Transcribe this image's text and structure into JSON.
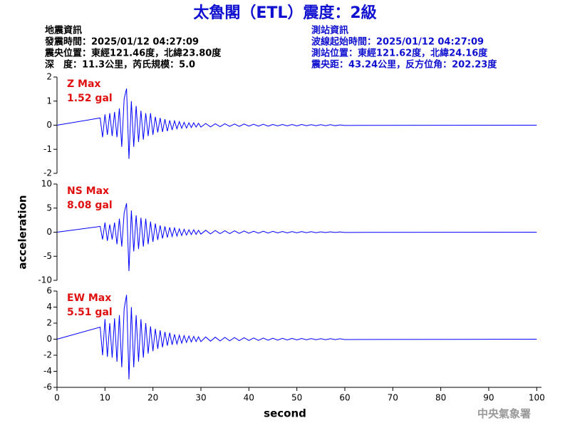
{
  "header": {
    "title": "太魯閣（ETL）震度：2級",
    "left_info": [
      "地震資訊",
      "發震時間：2025/01/12 04:27:09",
      "震央位置：東經121.46度，北緯23.80度",
      "深　度：11.3公里，芮氏規模：5.0"
    ],
    "right_info": [
      "測站資訊",
      "波線起始時間：2025/01/12 04:27:09",
      "測站位置：東經121.62度，北緯24.16度",
      "震央距：43.24公里，反方位角：202.23度"
    ],
    "footer": "中央氣象署"
  },
  "chart_data": [
    {
      "type": "line",
      "annotations": [
        "Z Max",
        "1.52 gal"
      ],
      "color": "#0000ff",
      "xlim": [
        0,
        101
      ],
      "ylim": [
        -2,
        2
      ],
      "yticks": [
        -2,
        -1,
        0,
        1,
        2
      ],
      "x": [
        0,
        9,
        9.5,
        10,
        10.5,
        11,
        11.5,
        12,
        12.5,
        13,
        13.5,
        14,
        14.5,
        15,
        15.5,
        16,
        16.5,
        17,
        17.5,
        18,
        18.5,
        19,
        19.5,
        20,
        20.5,
        21,
        21.5,
        22,
        22.5,
        23,
        23.5,
        24,
        24.5,
        25,
        25.5,
        26,
        26.5,
        27,
        27.5,
        28,
        28.5,
        29,
        29.5,
        30,
        31,
        32,
        33,
        34,
        35,
        36,
        37,
        38,
        39,
        40,
        41,
        42,
        43,
        44,
        45,
        46,
        47,
        48,
        49,
        50,
        51,
        52,
        53,
        54,
        55,
        56,
        57,
        58,
        59,
        60,
        100
      ],
      "values": [
        0,
        0.3,
        -0.5,
        0.45,
        -0.4,
        0.5,
        -0.45,
        0.55,
        -0.5,
        0.7,
        -0.9,
        1.1,
        1.52,
        -1.4,
        1.0,
        -0.9,
        0.8,
        -0.7,
        0.6,
        -0.6,
        0.5,
        -0.45,
        0.5,
        -0.4,
        0.35,
        -0.3,
        0.3,
        -0.28,
        0.25,
        -0.25,
        0.2,
        -0.2,
        0.18,
        -0.15,
        0.15,
        -0.13,
        0.12,
        -0.12,
        0.1,
        -0.1,
        0.1,
        -0.08,
        0.08,
        -0.08,
        0.07,
        -0.07,
        0.06,
        -0.06,
        0.06,
        -0.05,
        0.05,
        -0.05,
        0.05,
        -0.04,
        0.04,
        -0.04,
        0.04,
        -0.04,
        0.03,
        -0.03,
        0.03,
        -0.03,
        0.03,
        -0.03,
        0.03,
        -0.02,
        0.02,
        -0.02,
        0.02,
        -0.02,
        0.02,
        -0.02,
        0.01,
        -0.01,
        0
      ]
    },
    {
      "type": "line",
      "annotations": [
        "NS Max",
        "8.08 gal"
      ],
      "ylabel": "acceleration",
      "color": "#0000ff",
      "xlim": [
        0,
        101
      ],
      "ylim": [
        -10,
        10
      ],
      "yticks": [
        -10,
        -5,
        0,
        5,
        10
      ],
      "x": [
        0,
        9,
        9.5,
        10,
        10.5,
        11,
        11.5,
        12,
        12.5,
        13,
        13.5,
        14,
        14.5,
        15,
        15.5,
        16,
        16.5,
        17,
        17.5,
        18,
        18.5,
        19,
        19.5,
        20,
        20.5,
        21,
        21.5,
        22,
        22.5,
        23,
        23.5,
        24,
        24.5,
        25,
        25.5,
        26,
        26.5,
        27,
        27.5,
        28,
        28.5,
        29,
        29.5,
        30,
        31,
        32,
        33,
        34,
        35,
        36,
        37,
        38,
        39,
        40,
        41,
        42,
        43,
        44,
        45,
        46,
        47,
        48,
        49,
        50,
        51,
        52,
        53,
        54,
        55,
        56,
        57,
        58,
        59,
        60,
        100
      ],
      "values": [
        0,
        1.2,
        -1.5,
        2.0,
        -1.8,
        1.6,
        -1.5,
        2.0,
        -2.5,
        2.8,
        -3.0,
        4.0,
        6.0,
        -8.08,
        4.5,
        -4.0,
        3.5,
        -3.5,
        3.0,
        -3.0,
        2.8,
        -2.5,
        2.2,
        -2.0,
        1.8,
        -1.6,
        1.4,
        -1.3,
        1.2,
        -1.1,
        1.0,
        -0.9,
        0.9,
        -0.8,
        0.7,
        -0.7,
        0.6,
        -0.6,
        0.5,
        -0.5,
        0.5,
        -0.45,
        0.4,
        -0.4,
        0.4,
        -0.35,
        0.35,
        -0.3,
        0.3,
        -0.3,
        0.28,
        -0.25,
        0.25,
        -0.22,
        0.2,
        -0.2,
        0.2,
        -0.18,
        0.18,
        -0.15,
        0.15,
        -0.15,
        0.12,
        -0.12,
        0.12,
        -0.1,
        0.1,
        -0.1,
        0.08,
        -0.08,
        0.08,
        -0.06,
        0.05,
        -0.05,
        0
      ]
    },
    {
      "type": "line",
      "annotations": [
        "EW Max",
        "5.51 gal"
      ],
      "xlabel": "second",
      "color": "#0000ff",
      "xlim": [
        0,
        101
      ],
      "xticks": [
        0,
        10,
        20,
        30,
        40,
        50,
        60,
        70,
        80,
        90,
        100
      ],
      "ylim": [
        -6,
        6
      ],
      "yticks": [
        -6,
        -4,
        -2,
        0,
        2,
        4,
        6
      ],
      "x": [
        0,
        9,
        9.5,
        10,
        10.5,
        11,
        11.5,
        12,
        12.5,
        13,
        13.5,
        14,
        14.5,
        15,
        15.5,
        16,
        16.5,
        17,
        17.5,
        18,
        18.5,
        19,
        19.5,
        20,
        20.5,
        21,
        21.5,
        22,
        22.5,
        23,
        23.5,
        24,
        24.5,
        25,
        25.5,
        26,
        26.5,
        27,
        27.5,
        28,
        28.5,
        29,
        29.5,
        30,
        31,
        32,
        33,
        34,
        35,
        36,
        37,
        38,
        39,
        40,
        41,
        42,
        43,
        44,
        45,
        46,
        47,
        48,
        49,
        50,
        51,
        52,
        53,
        54,
        55,
        56,
        57,
        58,
        59,
        60,
        100
      ],
      "values": [
        0,
        1.5,
        -2.0,
        2.5,
        -2.2,
        2.0,
        -2.3,
        2.6,
        -2.8,
        3.0,
        -3.5,
        3.8,
        5.51,
        -5.0,
        4.0,
        -3.5,
        3.0,
        -2.8,
        2.5,
        -2.3,
        2.0,
        -1.8,
        1.6,
        -1.5,
        1.3,
        -1.2,
        1.1,
        -1.0,
        0.9,
        -0.8,
        0.8,
        -0.7,
        0.6,
        -0.6,
        0.5,
        -0.5,
        0.45,
        -0.4,
        0.4,
        -0.35,
        0.35,
        -0.3,
        0.3,
        -0.3,
        0.28,
        -0.25,
        0.25,
        -0.22,
        0.22,
        -0.2,
        0.2,
        -0.18,
        0.18,
        -0.16,
        0.15,
        -0.15,
        0.14,
        -0.13,
        0.12,
        -0.12,
        0.11,
        -0.1,
        0.1,
        -0.09,
        0.09,
        -0.08,
        0.08,
        -0.07,
        0.07,
        -0.06,
        0.06,
        -0.05,
        0.05,
        -0.04,
        0
      ]
    }
  ]
}
